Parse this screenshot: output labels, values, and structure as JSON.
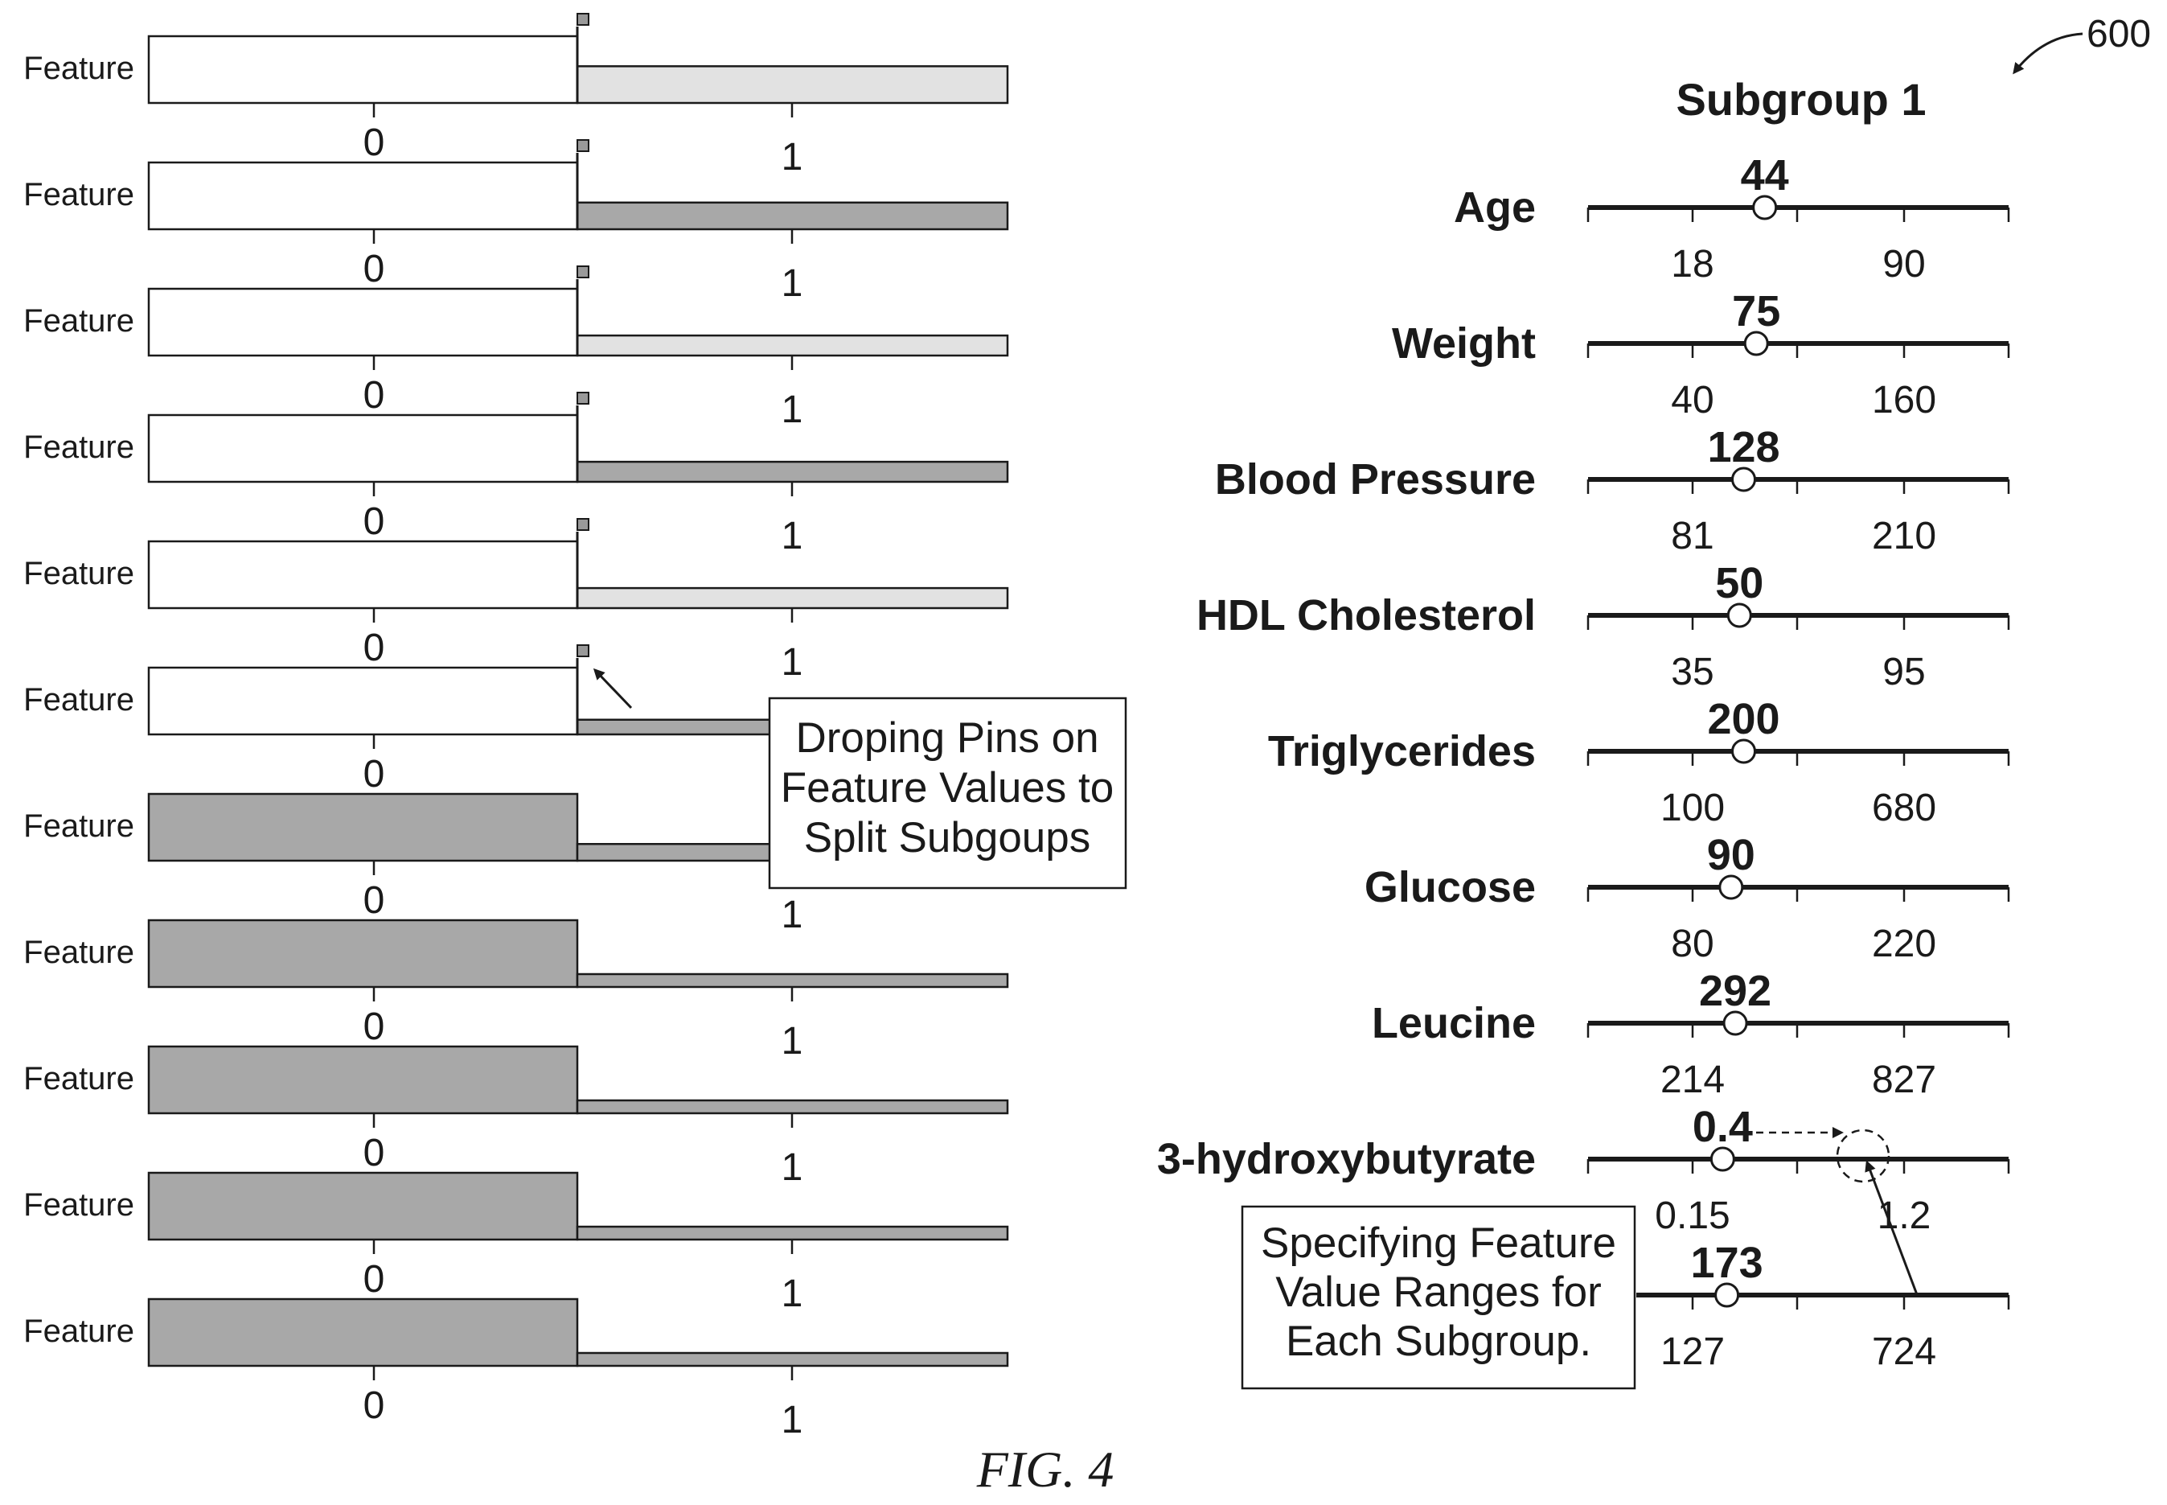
{
  "figure_number": "600",
  "caption": "FIG. 4",
  "colors": {
    "ink": "#1a1a1a",
    "light_fill": "#e2e2e2",
    "dark_fill": "#a8a8a8"
  },
  "left_panel": {
    "rows": [
      {
        "label": "Feature",
        "tick_labels": [
          "0",
          "1"
        ],
        "left_fill": "white",
        "right_fill": "light",
        "right_level": 0.55,
        "pin": true
      },
      {
        "label": "Feature",
        "tick_labels": [
          "0",
          "1"
        ],
        "left_fill": "white",
        "right_fill": "dark",
        "right_level": 0.4,
        "pin": true
      },
      {
        "label": "Feature",
        "tick_labels": [
          "0",
          "1"
        ],
        "left_fill": "white",
        "right_fill": "light",
        "right_level": 0.3,
        "pin": true
      },
      {
        "label": "Feature",
        "tick_labels": [
          "0",
          "1"
        ],
        "left_fill": "white",
        "right_fill": "dark",
        "right_level": 0.3,
        "pin": true
      },
      {
        "label": "Feature",
        "tick_labels": [
          "0",
          "1"
        ],
        "left_fill": "white",
        "right_fill": "light",
        "right_level": 0.3,
        "pin": true
      },
      {
        "label": "Feature",
        "tick_labels": [
          "0",
          "1"
        ],
        "left_fill": "white",
        "right_fill": "dark",
        "right_level": 0.22,
        "pin": true
      },
      {
        "label": "Feature",
        "tick_labels": [
          "0",
          "1"
        ],
        "left_fill": "dark",
        "right_fill": "dark",
        "right_level": 0.25,
        "pin": false
      },
      {
        "label": "Feature",
        "tick_labels": [
          "0",
          "1"
        ],
        "left_fill": "dark",
        "right_fill": "dark",
        "right_level": 0.18,
        "pin": false
      },
      {
        "label": "Feature",
        "tick_labels": [
          "0",
          "1"
        ],
        "left_fill": "dark",
        "right_fill": "dark",
        "right_level": 0.18,
        "pin": false
      },
      {
        "label": "Feature",
        "tick_labels": [
          "0",
          "1"
        ],
        "left_fill": "dark",
        "right_fill": "dark",
        "right_level": 0.18,
        "pin": false
      },
      {
        "label": "Feature",
        "tick_labels": [
          "0",
          "1"
        ],
        "left_fill": "dark",
        "right_fill": "dark",
        "right_level": 0.18,
        "pin": false
      }
    ],
    "callout": [
      "Droping Pins on",
      "Feature Values to",
      "Split Subgoups"
    ]
  },
  "right_panel": {
    "title": "Subgroup 1",
    "sliders": [
      {
        "label": "Age",
        "value": "44",
        "min_label": "18",
        "max_label": "90",
        "level": 0.42
      },
      {
        "label": "Weight",
        "value": "75",
        "min_label": "40",
        "max_label": "160",
        "level": 0.4
      },
      {
        "label": "Blood Pressure",
        "value": "128",
        "min_label": "81",
        "max_label": "210",
        "level": 0.37
      },
      {
        "label": "HDL Cholesterol",
        "value": "50",
        "min_label": "35",
        "max_label": "95",
        "level": 0.36
      },
      {
        "label": "Triglycerides",
        "value": "200",
        "min_label": "100",
        "max_label": "680",
        "level": 0.37
      },
      {
        "label": "Glucose",
        "value": "90",
        "min_label": "80",
        "max_label": "220",
        "level": 0.34
      },
      {
        "label": "Leucine",
        "value": "292",
        "min_label": "214",
        "max_label": "827",
        "level": 0.35
      },
      {
        "label": "3-hydroxybutyrate",
        "value": "0.4",
        "min_label": "0.15",
        "max_label": "1.2",
        "level": 0.32,
        "target_level": 0.62
      },
      {
        "label": "",
        "value": "173",
        "min_label": "127",
        "max_label": "724",
        "level": 0.33
      }
    ],
    "callout": [
      "Specifying Feature",
      "Value Ranges for",
      "Each Subgroup."
    ]
  }
}
